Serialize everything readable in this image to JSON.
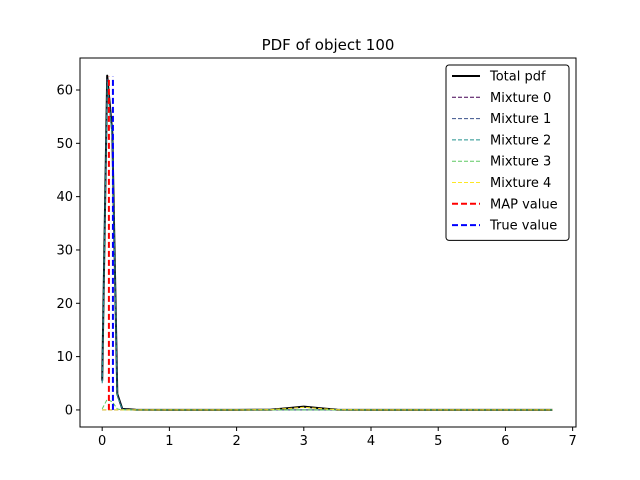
{
  "chart_data": {
    "type": "line",
    "title": "PDF of object 100",
    "xlabel": "",
    "ylabel": "",
    "xlim": [
      -0.33,
      7.05
    ],
    "ylim": [
      -3.2,
      66.0
    ],
    "xticks": [
      0,
      1,
      2,
      3,
      4,
      5,
      6,
      7
    ],
    "yticks": [
      0,
      10,
      20,
      30,
      40,
      50,
      60
    ],
    "grid": false,
    "legend_position": "top-right",
    "series": [
      {
        "name": "Total pdf",
        "color": "#000000",
        "dash": "solid",
        "x": [
          0.0,
          0.075,
          0.15,
          0.225,
          0.3,
          0.5,
          1.0,
          2.0,
          2.5,
          2.75,
          3.0,
          3.25,
          3.5,
          4.0,
          5.0,
          6.0,
          6.7
        ],
        "y": [
          5.5,
          62.7,
          52.0,
          3.0,
          0.2,
          0.05,
          0.0,
          0.0,
          0.05,
          0.3,
          0.62,
          0.3,
          0.05,
          0.0,
          0.0,
          0.0,
          0.0
        ]
      },
      {
        "name": "Mixture 0",
        "color": "#440154",
        "dash": "dashed",
        "x": [
          0.0,
          1.0,
          2.0,
          3.0,
          4.0,
          5.0,
          6.0,
          6.7
        ],
        "y": [
          0.0,
          0.0,
          0.0,
          0.0,
          0.0,
          0.0,
          0.0,
          0.0
        ]
      },
      {
        "name": "Mixture 1",
        "color": "#3b528b",
        "dash": "dashed",
        "x": [
          0.0,
          0.075,
          0.15,
          0.225,
          0.3,
          0.5,
          1.0,
          6.7
        ],
        "y": [
          5.2,
          62.0,
          51.5,
          2.8,
          0.15,
          0.0,
          0.0,
          0.0
        ]
      },
      {
        "name": "Mixture 2",
        "color": "#21918c",
        "dash": "dashed",
        "x": [
          0.0,
          0.075,
          0.15,
          0.225,
          0.3,
          0.5,
          1.0,
          6.7
        ],
        "y": [
          5.0,
          61.5,
          51.0,
          2.7,
          0.1,
          0.0,
          0.0,
          0.0
        ]
      },
      {
        "name": "Mixture 3",
        "color": "#5ec962",
        "dash": "dashed",
        "x": [
          0.0,
          0.075,
          0.15,
          0.225,
          0.3,
          0.5,
          1.0,
          6.7
        ],
        "y": [
          0.2,
          2.0,
          1.5,
          0.2,
          0.0,
          0.0,
          0.0,
          0.0
        ]
      },
      {
        "name": "Mixture 4",
        "color": "#fde725",
        "dash": "dashed",
        "x": [
          0.0,
          1.0,
          2.0,
          2.5,
          2.75,
          3.0,
          3.25,
          3.5,
          4.0,
          5.0,
          6.0,
          6.7
        ],
        "y": [
          0.0,
          0.0,
          0.0,
          0.05,
          0.25,
          0.5,
          0.25,
          0.05,
          0.0,
          0.0,
          0.0,
          0.0
        ]
      }
    ],
    "vlines": [
      {
        "name": "MAP value",
        "color": "#ff0000",
        "x": 0.1,
        "y_range": [
          0,
          62.5
        ]
      },
      {
        "name": "True value",
        "color": "#0000ff",
        "x": 0.16,
        "y_range": [
          0,
          62.5
        ]
      }
    ],
    "legend": [
      {
        "label": "Total pdf",
        "color": "#000000",
        "style": "solid-thick"
      },
      {
        "label": "Mixture 0",
        "color": "#440154",
        "style": "dashed-thin"
      },
      {
        "label": "Mixture 1",
        "color": "#3b528b",
        "style": "dashed-thin"
      },
      {
        "label": "Mixture 2",
        "color": "#21918c",
        "style": "dashed-thin"
      },
      {
        "label": "Mixture 3",
        "color": "#5ec962",
        "style": "dashed-thin"
      },
      {
        "label": "Mixture 4",
        "color": "#fde725",
        "style": "dashed-thin"
      },
      {
        "label": "MAP value",
        "color": "#ff0000",
        "style": "dashed-thick"
      },
      {
        "label": "True value",
        "color": "#0000ff",
        "style": "dashed-thick"
      }
    ]
  }
}
